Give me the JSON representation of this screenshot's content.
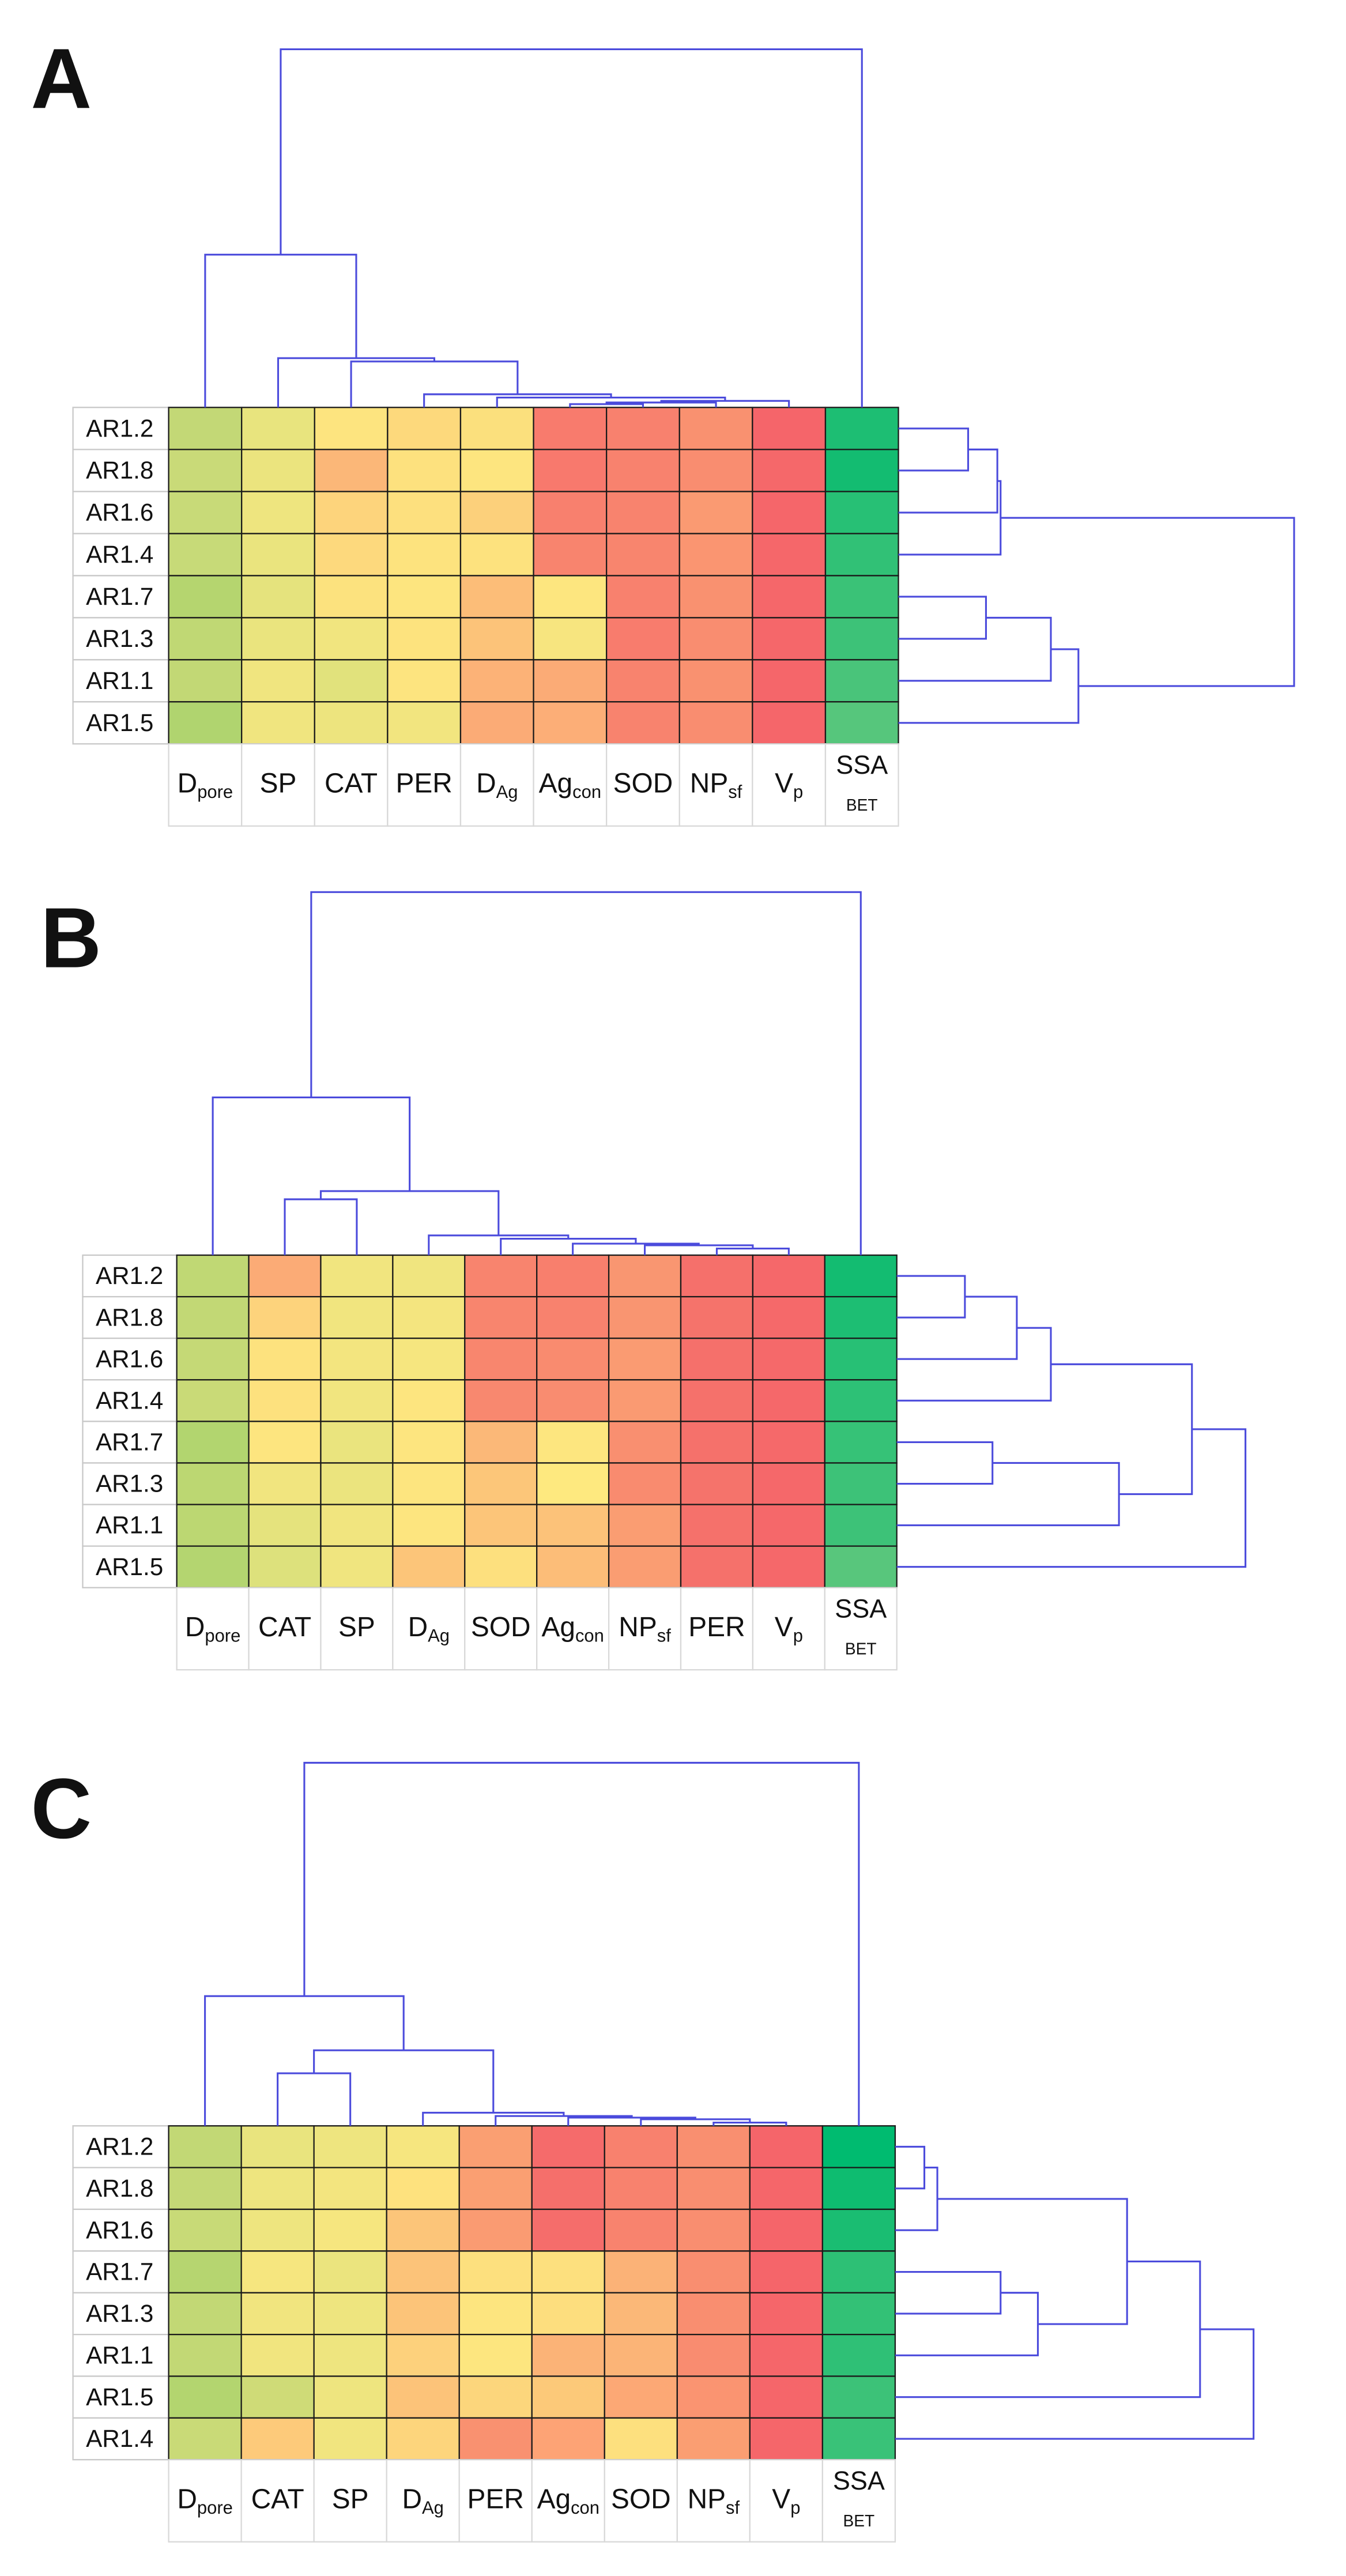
{
  "chart_data": [
    {
      "type": "heatmap",
      "panel": "A",
      "rows": [
        "AR1.2",
        "AR1.8",
        "AR1.6",
        "AR1.4",
        "AR1.7",
        "AR1.3",
        "AR1.1",
        "AR1.5"
      ],
      "columns": [
        {
          "text": "D",
          "sub": "pore"
        },
        {
          "text": "SP"
        },
        {
          "text": "CAT"
        },
        {
          "text": "PER"
        },
        {
          "text": "D",
          "sub": "Ag"
        },
        {
          "text": "Ag",
          "sub": "con"
        },
        {
          "text": "SOD"
        },
        {
          "text": "NP",
          "sub": "sf"
        },
        {
          "text": "V",
          "sub": "p"
        },
        {
          "text": "SSA",
          "under": "BET"
        }
      ],
      "colors": [
        [
          "#c3d876",
          "#e8e47e",
          "#fde47f",
          "#fdd97c",
          "#fbe07d",
          "#f87b6d",
          "#f8816e",
          "#f99170",
          "#f5656a",
          "#1dbe73"
        ],
        [
          "#c9da78",
          "#ebe47e",
          "#fbb778",
          "#fde17e",
          "#fde57f",
          "#f8796d",
          "#f8826e",
          "#f98d70",
          "#f5686a",
          "#13bc71"
        ],
        [
          "#c8da78",
          "#eee57f",
          "#fdd47c",
          "#fde07e",
          "#fcd07b",
          "#f8806e",
          "#f8836e",
          "#fa9a72",
          "#f5666a",
          "#27c075"
        ],
        [
          "#c7da78",
          "#eae47e",
          "#fdd97d",
          "#fde37e",
          "#fde27e",
          "#f8846e",
          "#f8856e",
          "#fa9571",
          "#f5676a",
          "#31c176"
        ],
        [
          "#b5d56f",
          "#e5e37d",
          "#fce27e",
          "#fde57f",
          "#fcbd78",
          "#fde67f",
          "#f8816e",
          "#f99170",
          "#f5676a",
          "#3ac277"
        ],
        [
          "#c0d874",
          "#eae47e",
          "#f1e57f",
          "#fde37e",
          "#fcc379",
          "#f7e57f",
          "#f87c6d",
          "#f98d70",
          "#f5676a",
          "#3dc278"
        ],
        [
          "#c2d875",
          "#f0e57f",
          "#e1e27c",
          "#fde47f",
          "#fcb277",
          "#fbab76",
          "#f8836e",
          "#f99170",
          "#f5666a",
          "#49c47a"
        ],
        [
          "#b0d46f",
          "#f0e57f",
          "#ede47e",
          "#f2e57f",
          "#fbab76",
          "#fcae77",
          "#f8836e",
          "#f98d70",
          "#f5666a",
          "#56c67c"
        ]
      ]
    },
    {
      "type": "heatmap",
      "panel": "B",
      "rows": [
        "AR1.2",
        "AR1.8",
        "AR1.6",
        "AR1.4",
        "AR1.7",
        "AR1.3",
        "AR1.1",
        "AR1.5"
      ],
      "columns": [
        {
          "text": "D",
          "sub": "pore"
        },
        {
          "text": "CAT"
        },
        {
          "text": "SP"
        },
        {
          "text": "D",
          "sub": "Ag"
        },
        {
          "text": "SOD"
        },
        {
          "text": "Ag",
          "sub": "con"
        },
        {
          "text": "NP",
          "sub": "sf"
        },
        {
          "text": "PER"
        },
        {
          "text": "V",
          "sub": "p"
        },
        {
          "text": "SSA",
          "under": "BET"
        }
      ],
      "colors": [
        [
          "#c0d874",
          "#fbab76",
          "#f1e57f",
          "#f0e57f",
          "#f8846e",
          "#f87f6d",
          "#f99671",
          "#f5706b",
          "#f5686a",
          "#13bc71"
        ],
        [
          "#c2d875",
          "#fdd37c",
          "#f1e57f",
          "#f4e57f",
          "#f8856e",
          "#f8826e",
          "#f99571",
          "#f5736b",
          "#f5696a",
          "#1dbe73"
        ],
        [
          "#c5d976",
          "#fde27e",
          "#f3e57f",
          "#f6e67f",
          "#f8866e",
          "#f98b6f",
          "#fa9b72",
          "#f5706b",
          "#f5696a",
          "#27c075"
        ],
        [
          "#c9da77",
          "#fde17e",
          "#f1e57f",
          "#fde57f",
          "#f8886f",
          "#f98c70",
          "#fa9a72",
          "#f5716b",
          "#f5686a",
          "#2dc176"
        ],
        [
          "#b2d56f",
          "#fde57f",
          "#eae47e",
          "#fde57f",
          "#fbb878",
          "#fde67f",
          "#f98f70",
          "#f5716b",
          "#f5696a",
          "#36c277"
        ],
        [
          "#bcd772",
          "#f1e57f",
          "#ebe47e",
          "#fde57f",
          "#fcc679",
          "#fee97f",
          "#f98b6f",
          "#f5736b",
          "#f5686a",
          "#3dc278"
        ],
        [
          "#bcd772",
          "#e5e37d",
          "#f1e57f",
          "#fde57f",
          "#fcc579",
          "#fcc279",
          "#fa9d72",
          "#f5716b",
          "#f5686a",
          "#3dc278"
        ],
        [
          "#b4d570",
          "#dde17c",
          "#f0e57f",
          "#fcc579",
          "#fde07e",
          "#fcbd78",
          "#fa9d72",
          "#f5716b",
          "#f5686a",
          "#58c67c"
        ]
      ]
    },
    {
      "type": "heatmap",
      "panel": "C",
      "rows": [
        "AR1.2",
        "AR1.8",
        "AR1.6",
        "AR1.7",
        "AR1.3",
        "AR1.1",
        "AR1.5",
        "AR1.4"
      ],
      "columns": [
        {
          "text": "D",
          "sub": "pore"
        },
        {
          "text": "CAT"
        },
        {
          "text": "SP"
        },
        {
          "text": "D",
          "sub": "Ag"
        },
        {
          "text": "PER"
        },
        {
          "text": "Ag",
          "sub": "con"
        },
        {
          "text": "SOD"
        },
        {
          "text": "NP",
          "sub": "sf"
        },
        {
          "text": "V",
          "sub": "p"
        },
        {
          "text": "SSA",
          "under": "BET"
        }
      ],
      "colors": [
        [
          "#c2d875",
          "#e9e47e",
          "#eee57f",
          "#f6e67f",
          "#fa9f72",
          "#f56b6b",
          "#f8816e",
          "#f98f70",
          "#f5656a",
          "#00bb70"
        ],
        [
          "#c4d876",
          "#eee57f",
          "#f3e57f",
          "#fee27e",
          "#fa9f72",
          "#f56f6b",
          "#f8826e",
          "#f98e70",
          "#f5666a",
          "#0ebc70"
        ],
        [
          "#c8da77",
          "#eee57f",
          "#f6e67f",
          "#fcc579",
          "#fa9b72",
          "#f56d6b",
          "#f8836e",
          "#f98e70",
          "#f5656a",
          "#1abd72"
        ],
        [
          "#b6d570",
          "#f6e67f",
          "#ebe47e",
          "#fcc379",
          "#fde07e",
          "#fde07e",
          "#fbb277",
          "#f98e70",
          "#f5656a",
          "#2dc075"
        ],
        [
          "#c2d875",
          "#f1e57f",
          "#eee57f",
          "#fcc479",
          "#fde57f",
          "#fdde7e",
          "#fbb878",
          "#f98e70",
          "#f5666a",
          "#33c176"
        ],
        [
          "#c2d875",
          "#f1e57f",
          "#eee57f",
          "#fdd17c",
          "#fde67f",
          "#fbb377",
          "#fbb477",
          "#f98c70",
          "#f5666a",
          "#2fc076"
        ],
        [
          "#b3d56f",
          "#cfdb77",
          "#eee57f",
          "#fcc379",
          "#fcd67c",
          "#fcc979",
          "#fca875",
          "#fa9471",
          "#f5666a",
          "#3cc278"
        ],
        [
          "#c9da77",
          "#fdca7a",
          "#f1e57f",
          "#fdd57c",
          "#f99170",
          "#fda375",
          "#fde07e",
          "#fa9e72",
          "#f5666a",
          "#39c278"
        ]
      ]
    }
  ]
}
